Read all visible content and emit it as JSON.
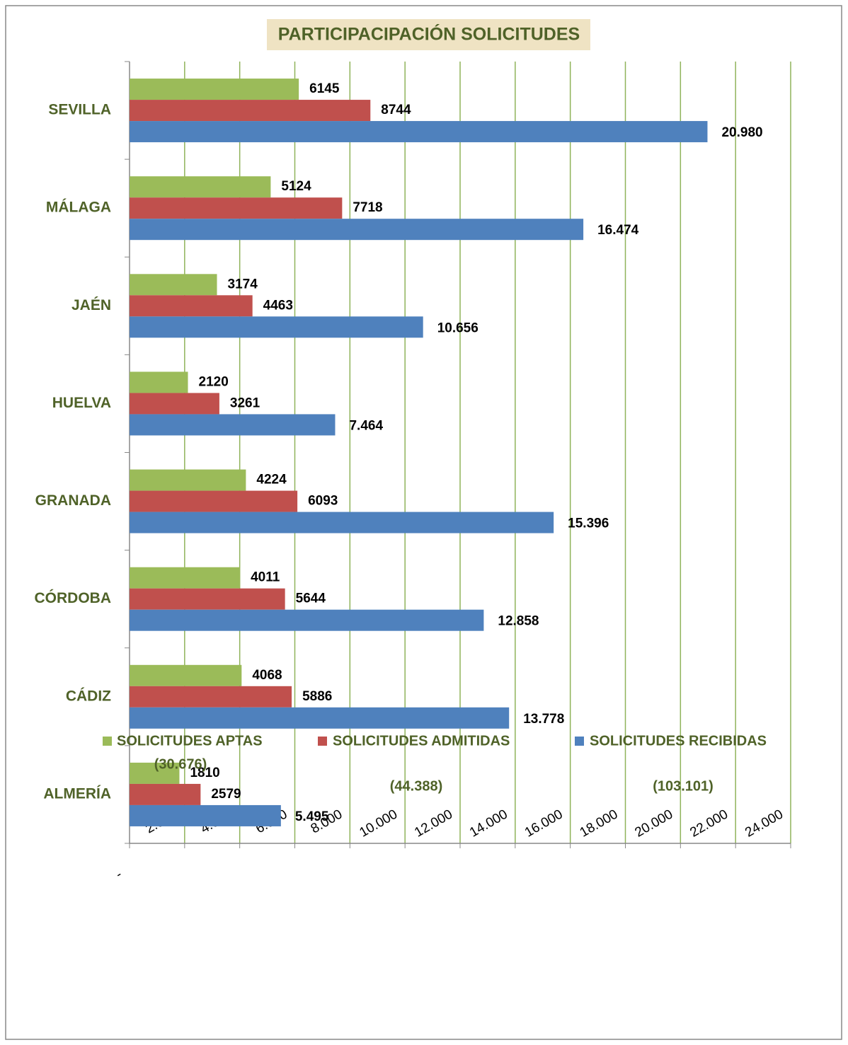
{
  "chart_data": {
    "type": "hbar",
    "title": "PARTICIPACIPACIÓN SOLICITUDES",
    "categories": [
      "SEVILLA",
      "MÁLAGA",
      "JAÉN",
      "HUELVA",
      "GRANADA",
      "CÓRDOBA",
      "CÁDIZ",
      "ALMERÍA"
    ],
    "series": [
      {
        "name": "SOLICITUDES APTAS",
        "legend_note": "(30.676)",
        "color": "#9bbb59",
        "values": [
          6145,
          5124,
          3174,
          2120,
          4224,
          4011,
          4068,
          1810
        ]
      },
      {
        "name": "SOLICITUDES ADMITIDAS",
        "legend_note": "(44.388)",
        "color": "#c0504d",
        "values": [
          8744,
          7718,
          4463,
          3261,
          6093,
          5644,
          5886,
          2579
        ]
      },
      {
        "name": "SOLICITUDES RECIBIDAS",
        "legend_note": "(103.101)",
        "color": "#4f81bd",
        "values": [
          20980,
          16474,
          10656,
          7464,
          15396,
          12858,
          13778,
          5495
        ],
        "value_labels": [
          "20.980",
          "16.474",
          "10.656",
          "7.464",
          "15.396",
          "12.858",
          "13.778",
          "5.495"
        ]
      }
    ],
    "xlim": [
      0,
      24000
    ],
    "xticks": [
      {
        "value": 0,
        "label": "-"
      },
      {
        "value": 2000,
        "label": "2.000"
      },
      {
        "value": 4000,
        "label": "4.000"
      },
      {
        "value": 6000,
        "label": "6.000"
      },
      {
        "value": 8000,
        "label": "8.000"
      },
      {
        "value": 10000,
        "label": "10.000"
      },
      {
        "value": 12000,
        "label": "12.000"
      },
      {
        "value": 14000,
        "label": "14.000"
      },
      {
        "value": 16000,
        "label": "16.000"
      },
      {
        "value": 18000,
        "label": "18.000"
      },
      {
        "value": 20000,
        "label": "20.000"
      },
      {
        "value": 22000,
        "label": "22.000"
      },
      {
        "value": 24000,
        "label": "24.000"
      }
    ],
    "grid": true,
    "legend": "bottom"
  }
}
